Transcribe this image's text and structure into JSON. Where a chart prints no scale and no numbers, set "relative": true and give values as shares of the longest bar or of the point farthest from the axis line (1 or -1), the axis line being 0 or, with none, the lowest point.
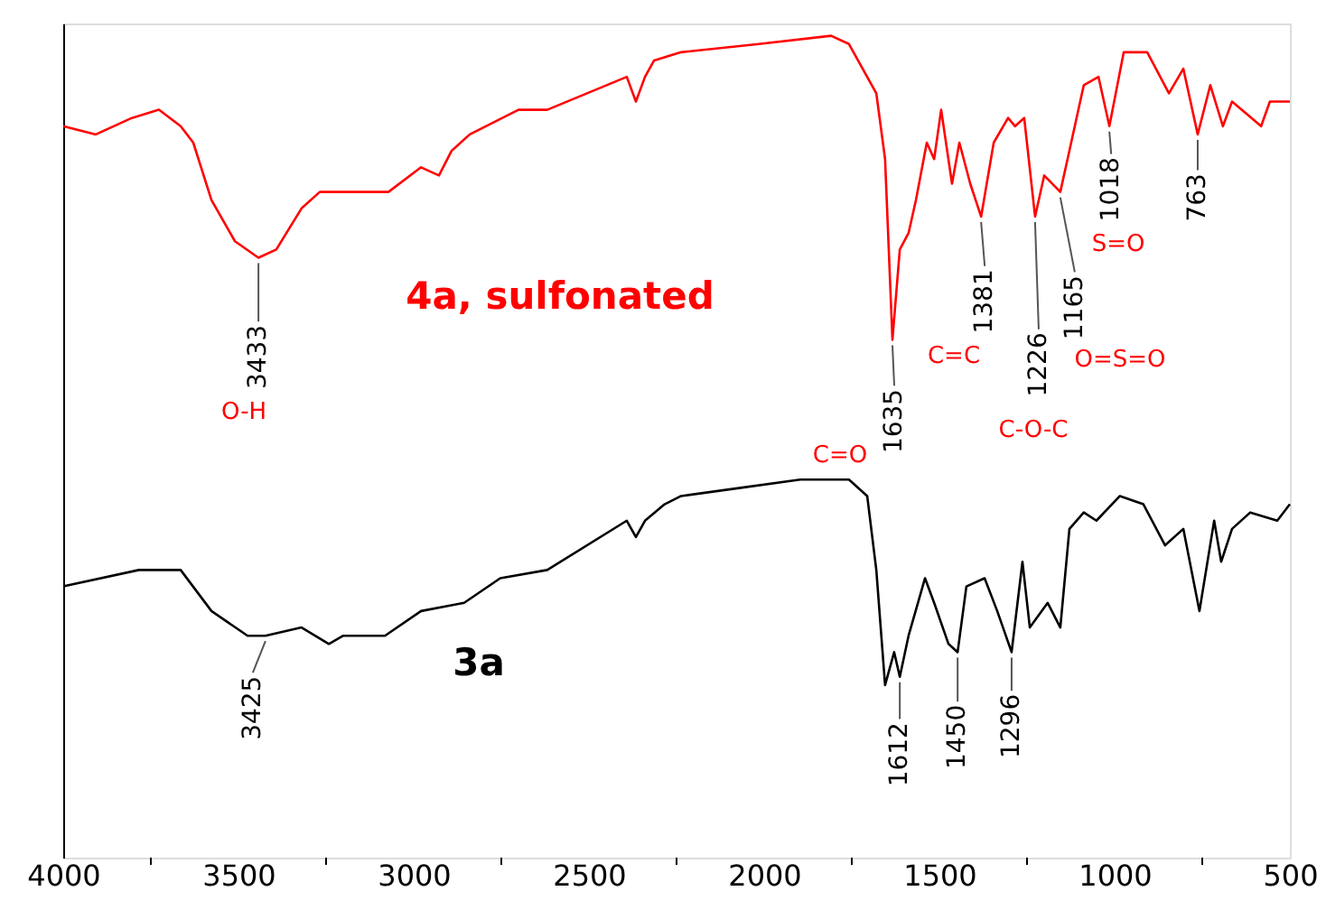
{
  "chart_data": {
    "type": "line",
    "relative": true,
    "grid": false,
    "marker": "none",
    "line_style": "solid",
    "xlim": [
      4000,
      500
    ],
    "xticks": [
      4000,
      {
        "value": 3750,
        "label": null
      },
      3500,
      {
        "value": 3250,
        "label": null
      },
      3000,
      {
        "value": 2750,
        "label": null
      },
      2500,
      {
        "value": 2250,
        "label": null
      },
      2000,
      {
        "value": 1750,
        "label": null
      },
      1500,
      {
        "value": 1250,
        "label": null
      },
      1000,
      {
        "value": 750,
        "label": null
      },
      500
    ],
    "series": [
      {
        "name": "4a, sulfonated",
        "color": "#ff0000",
        "x": [
          4000,
          3907,
          3804,
          3727,
          3665,
          3629,
          3577,
          3510,
          3443,
          3392,
          3320,
          3268,
          3186,
          3072,
          2979,
          2928,
          2892,
          2840,
          2701,
          2619,
          2392,
          2366,
          2340,
          2314,
          2237,
          2015,
          1809,
          1758,
          1680,
          1655,
          1634,
          1613,
          1588,
          1567,
          1536,
          1515,
          1495,
          1464,
          1443,
          1412,
          1381,
          1345,
          1304,
          1284,
          1258,
          1227,
          1201,
          1155,
          1124,
          1088,
          1046,
          1015,
          974,
          907,
          845,
          804,
          763,
          727,
          691,
          665,
          582,
          557,
          500
        ],
        "values": [
          0.89,
          0.88,
          0.9,
          0.91,
          0.89,
          0.87,
          0.8,
          0.75,
          0.73,
          0.74,
          0.79,
          0.81,
          0.81,
          0.81,
          0.84,
          0.83,
          0.86,
          0.88,
          0.91,
          0.91,
          0.95,
          0.92,
          0.95,
          0.97,
          0.98,
          0.99,
          1.0,
          0.99,
          0.93,
          0.85,
          0.63,
          0.74,
          0.76,
          0.8,
          0.87,
          0.85,
          0.91,
          0.82,
          0.87,
          0.82,
          0.78,
          0.87,
          0.9,
          0.89,
          0.9,
          0.78,
          0.83,
          0.81,
          0.87,
          0.94,
          0.95,
          0.89,
          0.98,
          0.98,
          0.93,
          0.96,
          0.88,
          0.94,
          0.89,
          0.92,
          0.89,
          0.92,
          0.92
        ]
      },
      {
        "name": "3a",
        "color": "#000000",
        "x": [
          4000,
          3784,
          3716,
          3665,
          3577,
          3474,
          3423,
          3320,
          3242,
          3201,
          3082,
          2979,
          2856,
          2753,
          2619,
          2392,
          2366,
          2340,
          2284,
          2237,
          2067,
          1897,
          1758,
          1706,
          1680,
          1655,
          1629,
          1613,
          1588,
          1541,
          1515,
          1474,
          1448,
          1423,
          1371,
          1335,
          1294,
          1263,
          1242,
          1191,
          1155,
          1129,
          1088,
          1052,
          985,
          918,
          856,
          804,
          758,
          716,
          696,
          665,
          613,
          536,
          500
        ],
        "values": [
          0.33,
          0.35,
          0.35,
          0.35,
          0.3,
          0.27,
          0.27,
          0.28,
          0.26,
          0.27,
          0.27,
          0.3,
          0.31,
          0.34,
          0.35,
          0.41,
          0.39,
          0.41,
          0.43,
          0.44,
          0.45,
          0.46,
          0.46,
          0.44,
          0.35,
          0.21,
          0.25,
          0.22,
          0.27,
          0.34,
          0.31,
          0.26,
          0.25,
          0.33,
          0.34,
          0.3,
          0.25,
          0.36,
          0.28,
          0.31,
          0.28,
          0.4,
          0.42,
          0.41,
          0.44,
          0.43,
          0.38,
          0.4,
          0.3,
          0.41,
          0.36,
          0.4,
          0.42,
          0.41,
          0.43
        ]
      }
    ],
    "annotations": [
      {
        "text": "3433",
        "x": 3443,
        "y": 0.73
      },
      "O-H",
      {
        "text": "3425",
        "x": 3423,
        "y": 0.27
      },
      {
        "text": "1635",
        "x": 1634,
        "y": 0.63
      },
      "C=O",
      "C=C",
      {
        "text": "1381",
        "x": 1381,
        "y": 0.78
      },
      {
        "text": "1226",
        "x": 1227,
        "y": 0.78
      },
      "C-O-C",
      {
        "text": "1165",
        "x": 1155,
        "y": 0.81
      },
      "O=S=O",
      "S=O",
      {
        "text": "1018",
        "x": 1015,
        "y": 0.89
      },
      {
        "text": "763",
        "x": 763,
        "y": 0.88
      },
      {
        "text": "1612",
        "x": 1613,
        "y": 0.22
      },
      {
        "text": "1450",
        "x": 1448,
        "y": 0.25
      },
      {
        "text": "1296",
        "x": 1294,
        "y": 0.25
      }
    ]
  }
}
